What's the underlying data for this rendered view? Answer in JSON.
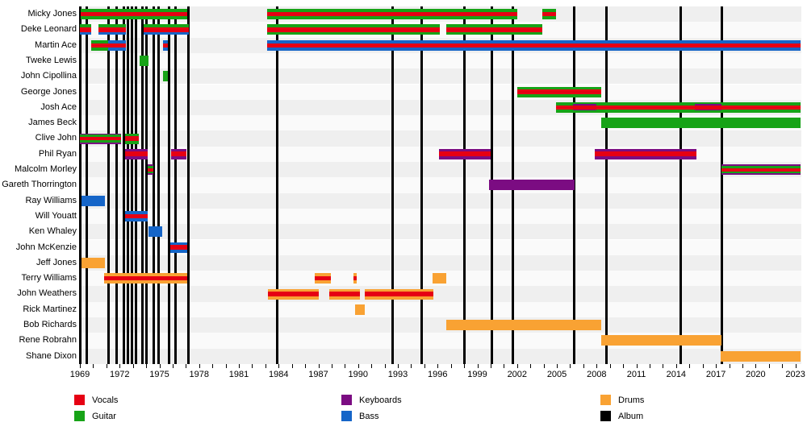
{
  "chart_data": {
    "type": "timeline",
    "description": "Band members timeline chart (membership bars by instrument, vertical lines = album releases)",
    "colors": {
      "vocals": "#e60013",
      "guitar": "#17a317",
      "keyboards": "#7b0c82",
      "bass": "#1565c8",
      "drums": "#f9a233",
      "album": "#000000"
    },
    "x_axis": {
      "start": 1969,
      "end": 2023.45,
      "tick_step_minor": 1,
      "tick_step_major": 3,
      "tick_labels": [
        "1969",
        "1972",
        "1975",
        "1978",
        "1981",
        "1984",
        "1987",
        "1990",
        "1993",
        "1996",
        "1999",
        "2002",
        "2005",
        "2008",
        "2011",
        "2014",
        "2017",
        "2020",
        "2023"
      ],
      "tick_years": [
        1969,
        1972,
        1975,
        1978,
        1981,
        1984,
        1987,
        1990,
        1993,
        1996,
        1999,
        2002,
        2005,
        2008,
        2011,
        2014,
        2017,
        2020,
        2023
      ]
    },
    "albums": [
      1969.0,
      1969.53,
      1971.18,
      1971.79,
      1972.29,
      1972.64,
      1972.94,
      1973.24,
      1973.75,
      1974.05,
      1974.58,
      1974.92,
      1975.73,
      1976.23,
      1977.2,
      1983.87,
      1992.6,
      1994.82,
      1998.05,
      2000.07,
      2001.68,
      2006.33,
      2008.76,
      2014.35,
      2017.44
    ],
    "legend": [
      {
        "label": "Vocals",
        "color": "vocals",
        "col": 0,
        "row": 0
      },
      {
        "label": "Guitar",
        "color": "guitar",
        "col": 0,
        "row": 1
      },
      {
        "label": "Keyboards",
        "color": "keyboards",
        "col": 1,
        "row": 0
      },
      {
        "label": "Bass",
        "color": "bass",
        "col": 1,
        "row": 1
      },
      {
        "label": "Drums",
        "color": "drums",
        "col": 2,
        "row": 0
      },
      {
        "label": "Album",
        "color": "album",
        "col": 2,
        "row": 1
      }
    ],
    "members": [
      {
        "name": "Micky Jones",
        "segments": [
          {
            "start": 1969.05,
            "end": 1977.12,
            "stripes": [
              [
                "guitar",
                1
              ],
              [
                "vocals",
                1.4
              ],
              [
                "guitar",
                1
              ]
            ]
          },
          {
            "start": 1983.12,
            "end": 2002.0,
            "stripes": [
              [
                "guitar",
                1
              ],
              [
                "vocals",
                1.4
              ],
              [
                "guitar",
                1
              ]
            ]
          },
          {
            "start": 2003.9,
            "end": 2004.92,
            "stripes": [
              [
                "guitar",
                1
              ],
              [
                "vocals",
                1.4
              ],
              [
                "guitar",
                1
              ]
            ]
          }
        ]
      },
      {
        "name": "Deke Leonard",
        "segments": [
          {
            "start": 1969.0,
            "end": 1969.87,
            "stripes": [
              [
                "guitar",
                1
              ],
              [
                "vocals",
                1.4
              ],
              [
                "bass",
                1
              ]
            ]
          },
          {
            "start": 1970.38,
            "end": 1972.5,
            "stripes": [
              [
                "guitar",
                1
              ],
              [
                "vocals",
                1.4
              ],
              [
                "bass",
                1
              ]
            ]
          },
          {
            "start": 1973.8,
            "end": 1977.2,
            "stripes": [
              [
                "guitar",
                1
              ],
              [
                "vocals",
                1.4
              ],
              [
                "bass",
                1
              ]
            ]
          },
          {
            "start": 1983.12,
            "end": 1996.15,
            "stripes": [
              [
                "guitar",
                1
              ],
              [
                "vocals",
                1.4
              ],
              [
                "guitar",
                1
              ]
            ]
          },
          {
            "start": 1996.64,
            "end": 2003.9,
            "stripes": [
              [
                "guitar",
                1
              ],
              [
                "vocals",
                1.4
              ],
              [
                "guitar",
                1
              ]
            ]
          }
        ]
      },
      {
        "name": "Martin Ace",
        "segments": [
          {
            "start": 1969.87,
            "end": 1971.12,
            "stripes": [
              [
                "guitar",
                1
              ],
              [
                "vocals",
                1.4
              ],
              [
                "guitar",
                1
              ]
            ]
          },
          {
            "start": 1971.12,
            "end": 1972.5,
            "stripes": [
              [
                "bass",
                1
              ],
              [
                "vocals",
                1.4
              ],
              [
                "bass",
                1
              ]
            ]
          },
          {
            "start": 1975.3,
            "end": 1975.62,
            "stripes": [
              [
                "bass",
                1
              ],
              [
                "vocals",
                1.4
              ],
              [
                "bass",
                1
              ]
            ]
          },
          {
            "start": 1983.12,
            "end": 2023.4,
            "stripes": [
              [
                "bass",
                1
              ],
              [
                "vocals",
                1.4
              ],
              [
                "bass",
                1
              ]
            ]
          }
        ]
      },
      {
        "name": "Tweke Lewis",
        "segments": [
          {
            "start": 1973.5,
            "end": 1974.17,
            "stripes": [
              [
                "guitar",
                1
              ]
            ]
          }
        ]
      },
      {
        "name": "John Cipollina",
        "segments": [
          {
            "start": 1975.3,
            "end": 1975.62,
            "stripes": [
              [
                "guitar",
                1
              ]
            ]
          }
        ]
      },
      {
        "name": "George Jones",
        "segments": [
          {
            "start": 2002.0,
            "end": 2008.35,
            "stripes": [
              [
                "guitar",
                1
              ],
              [
                "vocals",
                1.4
              ],
              [
                "guitar",
                1
              ]
            ]
          }
        ]
      },
      {
        "name": "Josh Ace",
        "segments": [
          {
            "start": 2004.92,
            "end": 2006.23,
            "stripes": [
              [
                "guitar",
                1
              ],
              [
                "vocals",
                1.4
              ],
              [
                "guitar",
                1
              ]
            ]
          },
          {
            "start": 2006.23,
            "end": 2007.95,
            "stripes": [
              [
                "guitar",
                1
              ],
              [
                "keyboards",
                0.55
              ],
              [
                "vocals",
                2.2
              ],
              [
                "keyboards",
                0.55
              ],
              [
                "guitar",
                1
              ]
            ]
          },
          {
            "start": 2007.95,
            "end": 2015.42,
            "stripes": [
              [
                "guitar",
                1
              ],
              [
                "vocals",
                1.4
              ],
              [
                "guitar",
                1
              ]
            ]
          },
          {
            "start": 2015.42,
            "end": 2017.44,
            "stripes": [
              [
                "guitar",
                1
              ],
              [
                "keyboards",
                0.55
              ],
              [
                "vocals",
                2.2
              ],
              [
                "keyboards",
                0.55
              ],
              [
                "guitar",
                1
              ]
            ]
          },
          {
            "start": 2017.44,
            "end": 2023.4,
            "stripes": [
              [
                "guitar",
                1
              ],
              [
                "vocals",
                1.4
              ],
              [
                "guitar",
                1
              ]
            ]
          }
        ]
      },
      {
        "name": "James Beck",
        "segments": [
          {
            "start": 2008.35,
            "end": 2023.4,
            "stripes": [
              [
                "guitar",
                1
              ]
            ]
          }
        ]
      },
      {
        "name": "Clive John",
        "segments": [
          {
            "start": 1969.0,
            "end": 1972.12,
            "stripes": [
              [
                "keyboards",
                0.7
              ],
              [
                "guitar",
                1
              ],
              [
                "vocals",
                1.5
              ],
              [
                "guitar",
                1
              ],
              [
                "keyboards",
                0.7
              ]
            ]
          },
          {
            "start": 1972.4,
            "end": 1973.42,
            "stripes": [
              [
                "guitar",
                1
              ],
              [
                "vocals",
                1.4
              ],
              [
                "guitar",
                1
              ]
            ]
          }
        ]
      },
      {
        "name": "Phil Ryan",
        "segments": [
          {
            "start": 1972.4,
            "end": 1974.1,
            "stripes": [
              [
                "keyboards",
                1
              ],
              [
                "vocals",
                1.6
              ],
              [
                "keyboards",
                1
              ]
            ]
          },
          {
            "start": 1975.9,
            "end": 1977.05,
            "stripes": [
              [
                "keyboards",
                1
              ],
              [
                "vocals",
                1.6
              ],
              [
                "keyboards",
                1
              ]
            ]
          },
          {
            "start": 1996.1,
            "end": 2000.0,
            "stripes": [
              [
                "keyboards",
                1
              ],
              [
                "vocals",
                1.6
              ],
              [
                "keyboards",
                1
              ]
            ]
          },
          {
            "start": 2007.85,
            "end": 2015.53,
            "stripes": [
              [
                "keyboards",
                1
              ],
              [
                "vocals",
                1.6
              ],
              [
                "keyboards",
                1
              ]
            ]
          }
        ]
      },
      {
        "name": "Malcolm Morley",
        "segments": [
          {
            "start": 1974.09,
            "end": 1974.52,
            "stripes": [
              [
                "keyboards",
                0.7
              ],
              [
                "guitar",
                1
              ],
              [
                "vocals",
                1.5
              ],
              [
                "guitar",
                1
              ],
              [
                "keyboards",
                0.7
              ]
            ]
          },
          {
            "start": 2017.44,
            "end": 2023.4,
            "stripes": [
              [
                "keyboards",
                0.7
              ],
              [
                "guitar",
                1
              ],
              [
                "vocals",
                1.5
              ],
              [
                "guitar",
                1
              ],
              [
                "keyboards",
                0.7
              ]
            ]
          }
        ]
      },
      {
        "name": "Gareth Thorrington",
        "segments": [
          {
            "start": 1999.87,
            "end": 2006.33,
            "stripes": [
              [
                "keyboards",
                1
              ]
            ]
          }
        ]
      },
      {
        "name": "Ray Williams",
        "segments": [
          {
            "start": 1969.1,
            "end": 1970.9,
            "stripes": [
              [
                "bass",
                1
              ]
            ]
          }
        ]
      },
      {
        "name": "Will Youatt",
        "segments": [
          {
            "start": 1972.4,
            "end": 1974.1,
            "stripes": [
              [
                "bass",
                1
              ],
              [
                "vocals",
                1.4
              ],
              [
                "bass",
                1
              ]
            ]
          }
        ]
      },
      {
        "name": "Ken Whaley",
        "segments": [
          {
            "start": 1974.17,
            "end": 1975.22,
            "stripes": [
              [
                "bass",
                1
              ]
            ]
          }
        ]
      },
      {
        "name": "John McKenzie",
        "segments": [
          {
            "start": 1975.8,
            "end": 1977.1,
            "stripes": [
              [
                "bass",
                1
              ],
              [
                "vocals",
                1.4
              ],
              [
                "bass",
                1
              ]
            ]
          }
        ]
      },
      {
        "name": "Jeff Jones",
        "segments": [
          {
            "start": 1969.1,
            "end": 1970.9,
            "stripes": [
              [
                "drums",
                1
              ]
            ]
          }
        ]
      },
      {
        "name": "Terry Williams",
        "segments": [
          {
            "start": 1970.84,
            "end": 1977.1,
            "stripes": [
              [
                "drums",
                1
              ],
              [
                "vocals",
                1.3
              ],
              [
                "drums",
                1
              ]
            ]
          },
          {
            "start": 1986.74,
            "end": 1987.95,
            "stripes": [
              [
                "drums",
                1
              ],
              [
                "vocals",
                1.3
              ],
              [
                "drums",
                1
              ]
            ]
          },
          {
            "start": 1989.67,
            "end": 1989.87,
            "stripes": [
              [
                "drums",
                1
              ],
              [
                "vocals",
                1.3
              ],
              [
                "drums",
                1
              ]
            ]
          },
          {
            "start": 1995.62,
            "end": 1996.64,
            "stripes": [
              [
                "drums",
                1
              ]
            ]
          }
        ]
      },
      {
        "name": "John Weathers",
        "segments": [
          {
            "start": 1983.18,
            "end": 1987.04,
            "stripes": [
              [
                "drums",
                1
              ],
              [
                "vocals",
                1.3
              ],
              [
                "drums",
                1
              ]
            ]
          },
          {
            "start": 1987.85,
            "end": 1990.11,
            "stripes": [
              [
                "drums",
                1
              ],
              [
                "vocals",
                1.3
              ],
              [
                "drums",
                1
              ]
            ]
          },
          {
            "start": 1990.53,
            "end": 1995.7,
            "stripes": [
              [
                "drums",
                1
              ],
              [
                "vocals",
                1.3
              ],
              [
                "drums",
                1
              ]
            ]
          }
        ]
      },
      {
        "name": "Rick Martinez",
        "segments": [
          {
            "start": 1989.78,
            "end": 1990.48,
            "stripes": [
              [
                "drums",
                1
              ]
            ]
          }
        ]
      },
      {
        "name": "Bob Richards",
        "segments": [
          {
            "start": 1996.64,
            "end": 2008.33,
            "stripes": [
              [
                "drums",
                1
              ]
            ]
          }
        ]
      },
      {
        "name": "Rene Robrahn",
        "segments": [
          {
            "start": 2008.33,
            "end": 2017.42,
            "stripes": [
              [
                "drums",
                1
              ]
            ]
          }
        ]
      },
      {
        "name": "Shane Dixon",
        "segments": [
          {
            "start": 2017.35,
            "end": 2023.4,
            "stripes": [
              [
                "drums",
                1
              ]
            ]
          }
        ]
      }
    ]
  }
}
